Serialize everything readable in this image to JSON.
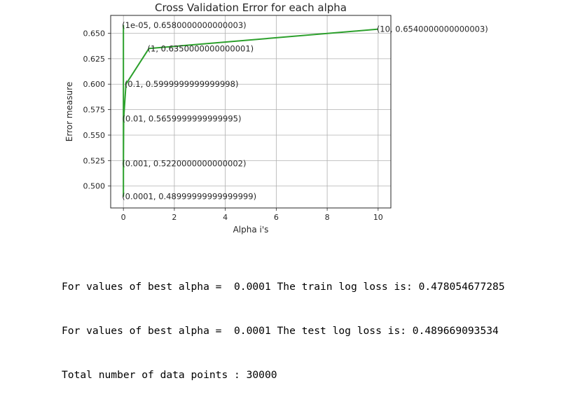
{
  "chart_data": {
    "type": "line",
    "title": "Cross Validation Error for each alpha",
    "xlabel": "Alpha i's",
    "ylabel": "Error measure",
    "xlim": [
      -0.5,
      10.5
    ],
    "ylim": [
      0.4785,
      0.6675
    ],
    "xticks": [
      0,
      2,
      4,
      6,
      8,
      10
    ],
    "xtick_labels": [
      "0",
      "2",
      "4",
      "6",
      "8",
      "10"
    ],
    "yticks": [
      0.5,
      0.525,
      0.55,
      0.575,
      0.6,
      0.625,
      0.65
    ],
    "ytick_labels": [
      "0.500",
      "0.525",
      "0.550",
      "0.575",
      "0.600",
      "0.625",
      "0.650"
    ],
    "grid": true,
    "series": [
      {
        "color": "#2ca02c",
        "x": [
          1e-05,
          0.0001,
          0.001,
          0.01,
          0.1,
          1,
          10
        ],
        "y": [
          0.658,
          0.49,
          0.522,
          0.566,
          0.6,
          0.635,
          0.654
        ]
      }
    ],
    "annotations": [
      {
        "text": "(1e-05, 0.6580000000000003)",
        "x": 1e-05,
        "y": 0.658
      },
      {
        "text": "(0.0001, 0.48999999999999999)",
        "x": 0.0001,
        "y": 0.49
      },
      {
        "text": "(0.001, 0.5220000000000002)",
        "x": 0.001,
        "y": 0.522
      },
      {
        "text": "(0.01, 0.5659999999999995)",
        "x": 0.01,
        "y": 0.566
      },
      {
        "text": "(0.1, 0.5999999999999998)",
        "x": 0.1,
        "y": 0.6
      },
      {
        "text": "(1, 0.6350000000000001)",
        "x": 1,
        "y": 0.635
      },
      {
        "text": "(10, 0.6540000000000003)",
        "x": 10,
        "y": 0.654
      }
    ]
  },
  "output_lines": [
    "For values of best alpha =  0.0001 The train log loss is: 0.478054677285",
    "For values of best alpha =  0.0001 The test log loss is: 0.489669093534",
    "Total number of data points : 30000"
  ]
}
